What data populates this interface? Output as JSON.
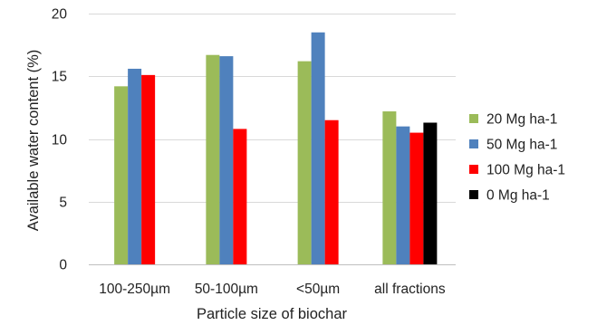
{
  "chart_data": {
    "type": "bar",
    "title": "",
    "xlabel": "Particle size of biochar",
    "ylabel": "Available water content (%)",
    "ylim": [
      0,
      20
    ],
    "yticks": [
      0,
      5,
      10,
      15,
      20
    ],
    "grid": true,
    "legend_position": "right",
    "categories": [
      "100-250µm",
      "50-100µm",
      "<50µm",
      "all fractions"
    ],
    "series": [
      {
        "name": "20 Mg ha-1",
        "color": "#9BBB59",
        "values": [
          14.2,
          16.7,
          16.2,
          12.2
        ]
      },
      {
        "name": "50 Mg ha-1",
        "color": "#4F81BD",
        "values": [
          15.6,
          16.6,
          18.5,
          11.0
        ]
      },
      {
        "name": "100 Mg ha-1",
        "color": "#FF0000",
        "values": [
          15.1,
          10.8,
          11.5,
          10.5
        ]
      },
      {
        "name": "0 Mg ha-1",
        "color": "#000000",
        "values": [
          null,
          null,
          null,
          11.3
        ]
      }
    ]
  }
}
